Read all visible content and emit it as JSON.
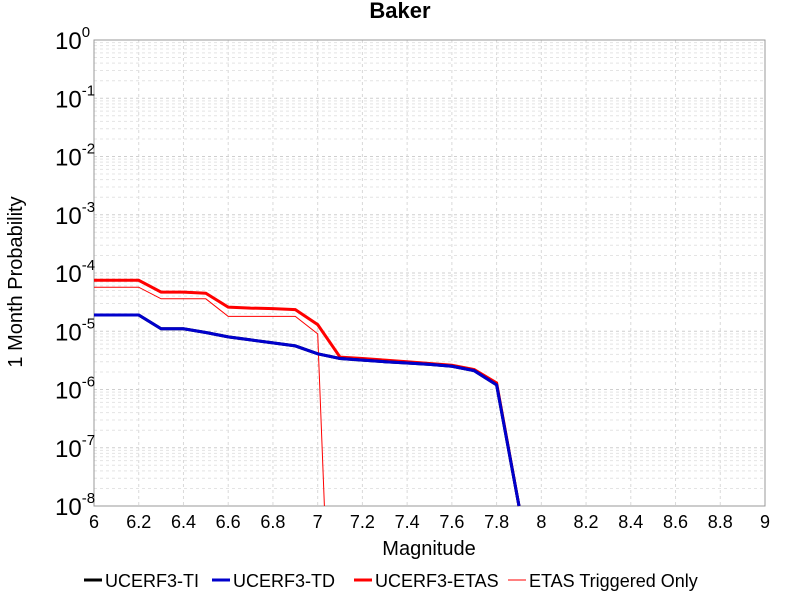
{
  "chart_data": {
    "type": "line",
    "title": "Baker",
    "xlabel": "Magnitude",
    "ylabel": "1 Month Probability",
    "xlim": [
      6,
      9
    ],
    "ylim": [
      1e-08,
      1
    ],
    "yscale": "log",
    "grid": true,
    "legend_position": "bottom",
    "x_ticks": [
      "6",
      "6.2",
      "6.4",
      "6.6",
      "6.8",
      "7",
      "7.2",
      "7.4",
      "7.6",
      "7.8",
      "8",
      "8.2",
      "8.4",
      "8.6",
      "8.8",
      "9"
    ],
    "y_ticks": [
      {
        "base": "10",
        "exp": "0"
      },
      {
        "base": "10",
        "exp": "-1"
      },
      {
        "base": "10",
        "exp": "-2"
      },
      {
        "base": "10",
        "exp": "-3"
      },
      {
        "base": "10",
        "exp": "-4"
      },
      {
        "base": "10",
        "exp": "-5"
      },
      {
        "base": "10",
        "exp": "-6"
      },
      {
        "base": "10",
        "exp": "-7"
      },
      {
        "base": "10",
        "exp": "-8"
      }
    ],
    "series": [
      {
        "name": "UCERF3-TI",
        "color": "#000000",
        "width": 3,
        "x": [
          6.0,
          6.1,
          6.2,
          6.3,
          6.4,
          6.5,
          6.6,
          6.7,
          6.8,
          6.9,
          7.0,
          7.1,
          7.2,
          7.3,
          7.4,
          7.5,
          7.6,
          7.7,
          7.8,
          7.9
        ],
        "y": [
          1.9e-05,
          1.9e-05,
          1.9e-05,
          1.1e-05,
          1.1e-05,
          9.5e-06,
          8e-06,
          7.1e-06,
          6.3e-06,
          5.6e-06,
          4.1e-06,
          3.4e-06,
          3.2e-06,
          3e-06,
          2.85e-06,
          2.7e-06,
          2.5e-06,
          2.1e-06,
          1.2e-06,
          1e-08
        ]
      },
      {
        "name": "UCERF3-TD",
        "color": "#0000cc",
        "width": 3,
        "x": [
          6.0,
          6.1,
          6.2,
          6.3,
          6.4,
          6.5,
          6.6,
          6.7,
          6.8,
          6.9,
          7.0,
          7.1,
          7.2,
          7.3,
          7.4,
          7.5,
          7.6,
          7.7,
          7.8,
          7.9
        ],
        "y": [
          1.9e-05,
          1.9e-05,
          1.9e-05,
          1.1e-05,
          1.1e-05,
          9.5e-06,
          8e-06,
          7.1e-06,
          6.3e-06,
          5.6e-06,
          4.1e-06,
          3.4e-06,
          3.2e-06,
          3e-06,
          2.85e-06,
          2.7e-06,
          2.5e-06,
          2.1e-06,
          1.2e-06,
          1e-08
        ]
      },
      {
        "name": "UCERF3-ETAS",
        "color": "#ff0000",
        "width": 3,
        "x": [
          6.0,
          6.1,
          6.2,
          6.3,
          6.4,
          6.5,
          6.6,
          6.7,
          6.8,
          6.9,
          7.0,
          7.1,
          7.2,
          7.3,
          7.4,
          7.5,
          7.6,
          7.7,
          7.8,
          7.9
        ],
        "y": [
          7.5e-05,
          7.5e-05,
          7.5e-05,
          4.7e-05,
          4.7e-05,
          4.5e-05,
          2.6e-05,
          2.5e-05,
          2.45e-05,
          2.35e-05,
          1.3e-05,
          3.6e-06,
          3.4e-06,
          3.2e-06,
          3e-06,
          2.8e-06,
          2.6e-06,
          2.2e-06,
          1.3e-06,
          1e-08
        ]
      },
      {
        "name": "ETAS Triggered Only",
        "color": "#ff0000",
        "width": 1,
        "x": [
          6.0,
          6.1,
          6.2,
          6.3,
          6.4,
          6.5,
          6.6,
          6.7,
          6.8,
          6.9,
          7.0,
          7.03
        ],
        "y": [
          5.7e-05,
          5.7e-05,
          5.7e-05,
          3.6e-05,
          3.6e-05,
          3.6e-05,
          1.8e-05,
          1.8e-05,
          1.8e-05,
          1.8e-05,
          9e-06,
          1e-08
        ]
      }
    ]
  }
}
